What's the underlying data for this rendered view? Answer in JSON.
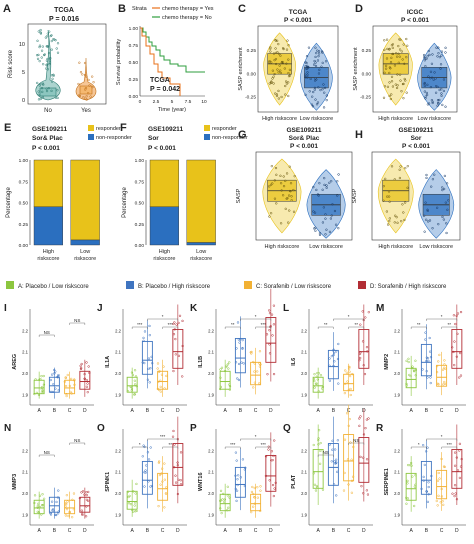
{
  "colors": {
    "blue": "#2b6fbf",
    "yellow": "#e8c21a",
    "orange": "#f0a020",
    "brown": "#b5651d",
    "green_line": "#2e9e3e",
    "orange_line": "#e8701a",
    "legendA": "#8cc63f",
    "legendB": "#3f74c0",
    "legendC": "#f2b134",
    "legendD": "#b22d35"
  },
  "panelA": {
    "letter": "A",
    "title": "TCGA",
    "pval": "P = 0.016",
    "ylabel": "Risk score",
    "yticks": [
      "0",
      "5",
      "10"
    ],
    "xticks": [
      "No",
      "Yes"
    ]
  },
  "panelB": {
    "letter": "B",
    "strata_label": "Strata",
    "legend_yes": "chemo therapy = Yes",
    "legend_no": "chemo therapy = No",
    "ylabel": "Survival probability",
    "yticks": [
      "0.00",
      "0.25",
      "0.50",
      "0.75",
      "1.00"
    ],
    "xticks": [
      "0",
      "2.5",
      "5",
      "7.5",
      "10"
    ],
    "xlabel": "Time (year)",
    "title": "TCGA",
    "pval": "P = 0.042"
  },
  "panelC": {
    "letter": "C",
    "title": "TCGA",
    "pval": "P < 0.001",
    "ylabel": "SASP enrichment",
    "yticks": [
      "0.25",
      "0.00",
      "-0.25"
    ],
    "xticks": [
      "High riskscore",
      "Low riskscore"
    ]
  },
  "panelD": {
    "letter": "D",
    "title": "ICGC",
    "pval": "P < 0.001",
    "ylabel": "SASP enrichment",
    "yticks": [
      "0.25",
      "0.00",
      "-0.25"
    ],
    "xticks": [
      "High riskscore",
      "Low riskscore"
    ]
  },
  "panelE": {
    "letter": "E",
    "title1": "GSE109211",
    "title2": "Sor& Plac",
    "pval": "P < 0.001",
    "ylabel": "Percentage",
    "legend_resp": "responder",
    "legend_nonresp": "non-responder",
    "yticks": [
      "0.00",
      "0.25",
      "0.50",
      "0.75",
      "1.00"
    ],
    "xticks1": [
      "High",
      "Low"
    ],
    "xticks2": [
      "riskscore",
      "riskscore"
    ]
  },
  "panelF": {
    "letter": "F",
    "title1": "GSE109211",
    "title2": "Sor",
    "pval": "P < 0.001",
    "ylabel": "Percentage",
    "legend_resp": "responder",
    "legend_nonresp": "non-responder",
    "yticks": [
      "0.00",
      "0.25",
      "0.50",
      "0.75",
      "1.00"
    ],
    "xticks1": [
      "High",
      "Low"
    ],
    "xticks2": [
      "riskscore",
      "riskscore"
    ]
  },
  "panelG": {
    "letter": "G",
    "title1": "GSE109211",
    "title2": "Sor& Plac",
    "pval": "P < 0.001",
    "ylabel": "SASP",
    "xticks": [
      "High riskscore",
      "Low riskscore"
    ]
  },
  "panelH": {
    "letter": "H",
    "title1": "GSE109211",
    "title2": "Sor",
    "pval": "P < 0.001",
    "ylabel": "SASP",
    "xticks": [
      "High riskscore",
      "Low riskscore"
    ]
  },
  "legend": {
    "A": "A: Placebo / Low riskscore",
    "B": "B: Placebo / High riskscore",
    "C": "C: Sorafenib / Low riskscore",
    "D": "D: Sorafenib / High riskscore"
  },
  "group_labels": [
    "A",
    "B",
    "C",
    "D"
  ],
  "sig": {
    "ns": "NS",
    "s1": "*",
    "s2": "**",
    "s3": "***"
  },
  "small_panels": [
    {
      "letter": "I",
      "gene": "AREG",
      "yticks": [
        "1.9",
        "2.0",
        "2.1",
        "2.2"
      ],
      "medians": [
        1.93,
        1.94,
        1.93,
        1.96
      ],
      "sigs": [
        "NS",
        "NS"
      ]
    },
    {
      "letter": "J",
      "gene": "IL1A",
      "yticks": [
        "1.9",
        "2.0",
        "2.1",
        "2.2"
      ],
      "medians": [
        1.94,
        2.06,
        1.96,
        2.1
      ],
      "sigs": [
        "***",
        "*",
        "***"
      ]
    },
    {
      "letter": "K",
      "gene": "IL1B",
      "yticks": [
        "1.9",
        "2.0",
        "2.1",
        "2.2"
      ],
      "medians": [
        1.96,
        2.07,
        1.99,
        2.14
      ],
      "sigs": [
        "**",
        "*",
        "***"
      ]
    },
    {
      "letter": "L",
      "gene": "IL6",
      "yticks": [
        "1.9",
        "2.0",
        "2.1",
        "2.2"
      ],
      "medians": [
        1.94,
        2.03,
        1.95,
        2.1
      ],
      "sigs": [
        "**",
        "*",
        "**"
      ]
    },
    {
      "letter": "M",
      "gene": "MMP2",
      "yticks": [
        "1.9",
        "2.0",
        "2.1",
        "2.2"
      ],
      "medians": [
        1.97,
        2.05,
        1.98,
        2.1
      ],
      "sigs": [
        "**",
        "*",
        "**"
      ]
    },
    {
      "letter": "N",
      "gene": "MMP3",
      "yticks": [
        "1.9",
        "2.0",
        "2.1",
        "2.2"
      ],
      "medians": [
        1.93,
        1.94,
        1.93,
        1.94
      ],
      "sigs": [
        "NS",
        "NS"
      ]
    },
    {
      "letter": "O",
      "gene": "SPINK1",
      "yticks": [
        "1.9",
        "2.0",
        "2.1",
        "2.2"
      ],
      "medians": [
        1.96,
        2.06,
        2.02,
        2.12
      ],
      "sigs": [
        "*",
        "***",
        "**"
      ]
    },
    {
      "letter": "P",
      "gene": "WNT16",
      "yticks": [
        "1.9",
        "2.0",
        "2.1",
        "2.2"
      ],
      "medians": [
        1.95,
        2.04,
        1.95,
        2.08
      ],
      "sigs": [
        "***",
        "*",
        "***"
      ]
    },
    {
      "letter": "Q",
      "gene": "PLAT",
      "yticks": [
        "1.9",
        "2.0",
        "2.1",
        "2.2"
      ],
      "medians": [
        2.1,
        2.12,
        2.15,
        2.14
      ],
      "sigs": [
        "NS",
        "NS"
      ]
    },
    {
      "letter": "R",
      "gene": "SERPINE1",
      "yticks": [
        "1.9",
        "2.0",
        "2.1",
        "2.2"
      ],
      "medians": [
        2.02,
        2.06,
        2.03,
        2.1
      ],
      "sigs": [
        "*",
        "*",
        "***"
      ]
    }
  ],
  "chart_data": [
    {
      "type": "bar",
      "panel": "E",
      "categories": [
        "High riskscore",
        "Low riskscore"
      ],
      "series": [
        {
          "name": "non-responder",
          "values": [
            0.45,
            0.06
          ]
        },
        {
          "name": "responder",
          "values": [
            0.55,
            0.94
          ]
        }
      ],
      "ylim": [
        0,
        1
      ]
    },
    {
      "type": "bar",
      "panel": "F",
      "categories": [
        "High riskscore",
        "Low riskscore"
      ],
      "series": [
        {
          "name": "non-responder",
          "values": [
            0.45,
            0.03
          ]
        },
        {
          "name": "responder",
          "values": [
            0.55,
            0.97
          ]
        }
      ],
      "ylim": [
        0,
        1
      ]
    }
  ]
}
